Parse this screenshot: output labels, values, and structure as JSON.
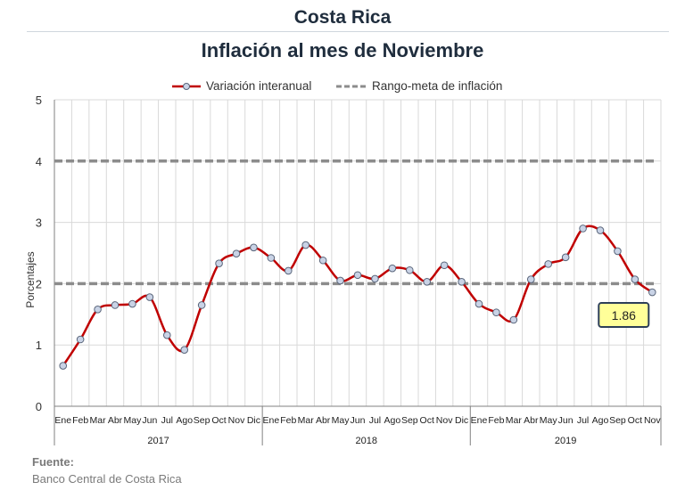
{
  "header": {
    "country": "Costa Rica",
    "title": "Inflación al mes de Noviembre"
  },
  "legend": {
    "series_label": "Variación interanual",
    "band_label": "Rango-meta de inflación"
  },
  "footer": {
    "source_label": "Fuente:",
    "source_value": "Banco Central de Costa Rica"
  },
  "colors": {
    "series": "#c00000",
    "marker_fill": "#c9d3e6",
    "marker_stroke": "#59657a",
    "band": "#8c8c8c",
    "grid": "#d9d9d9",
    "callout_fill": "#ffff99",
    "callout_border": "#2c3e57"
  },
  "chart_data": {
    "type": "line",
    "title": "Inflación al mes de Noviembre",
    "xlabel": "",
    "ylabel": "Porcentajes",
    "ylim": [
      0,
      5
    ],
    "yticks": [
      "0",
      "1",
      "2",
      "3",
      "4",
      "5"
    ],
    "grid": true,
    "legend_position": "top",
    "categories": [
      "Ene",
      "Feb",
      "Mar",
      "Abr",
      "May",
      "Jun",
      "Jul",
      "Ago",
      "Sep",
      "Oct",
      "Nov",
      "Dic",
      "Ene",
      "Feb",
      "Mar",
      "Abr",
      "May",
      "Jun",
      "Jul",
      "Ago",
      "Sep",
      "Oct",
      "Nov",
      "Dic",
      "Ene",
      "Feb",
      "Mar",
      "Abr",
      "May",
      "Jun",
      "Jul",
      "Ago",
      "Sep",
      "Oct",
      "Nov"
    ],
    "years": [
      {
        "label": "2017",
        "months": 12
      },
      {
        "label": "2018",
        "months": 12
      },
      {
        "label": "2019",
        "months": 11
      }
    ],
    "series": [
      {
        "name": "Variación interanual",
        "values": [
          0.66,
          1.09,
          1.58,
          1.65,
          1.67,
          1.78,
          1.16,
          0.92,
          1.65,
          2.33,
          2.49,
          2.59,
          2.42,
          2.21,
          2.63,
          2.38,
          2.05,
          2.14,
          2.08,
          2.25,
          2.22,
          2.03,
          2.3,
          2.03,
          1.67,
          1.53,
          1.41,
          2.07,
          2.32,
          2.43,
          2.9,
          2.87,
          2.53,
          2.07,
          1.86
        ]
      },
      {
        "name": "Rango-meta de inflación",
        "lower": 2,
        "upper": 4
      }
    ],
    "annotation": {
      "text": "1.86",
      "category_index": 34
    }
  }
}
